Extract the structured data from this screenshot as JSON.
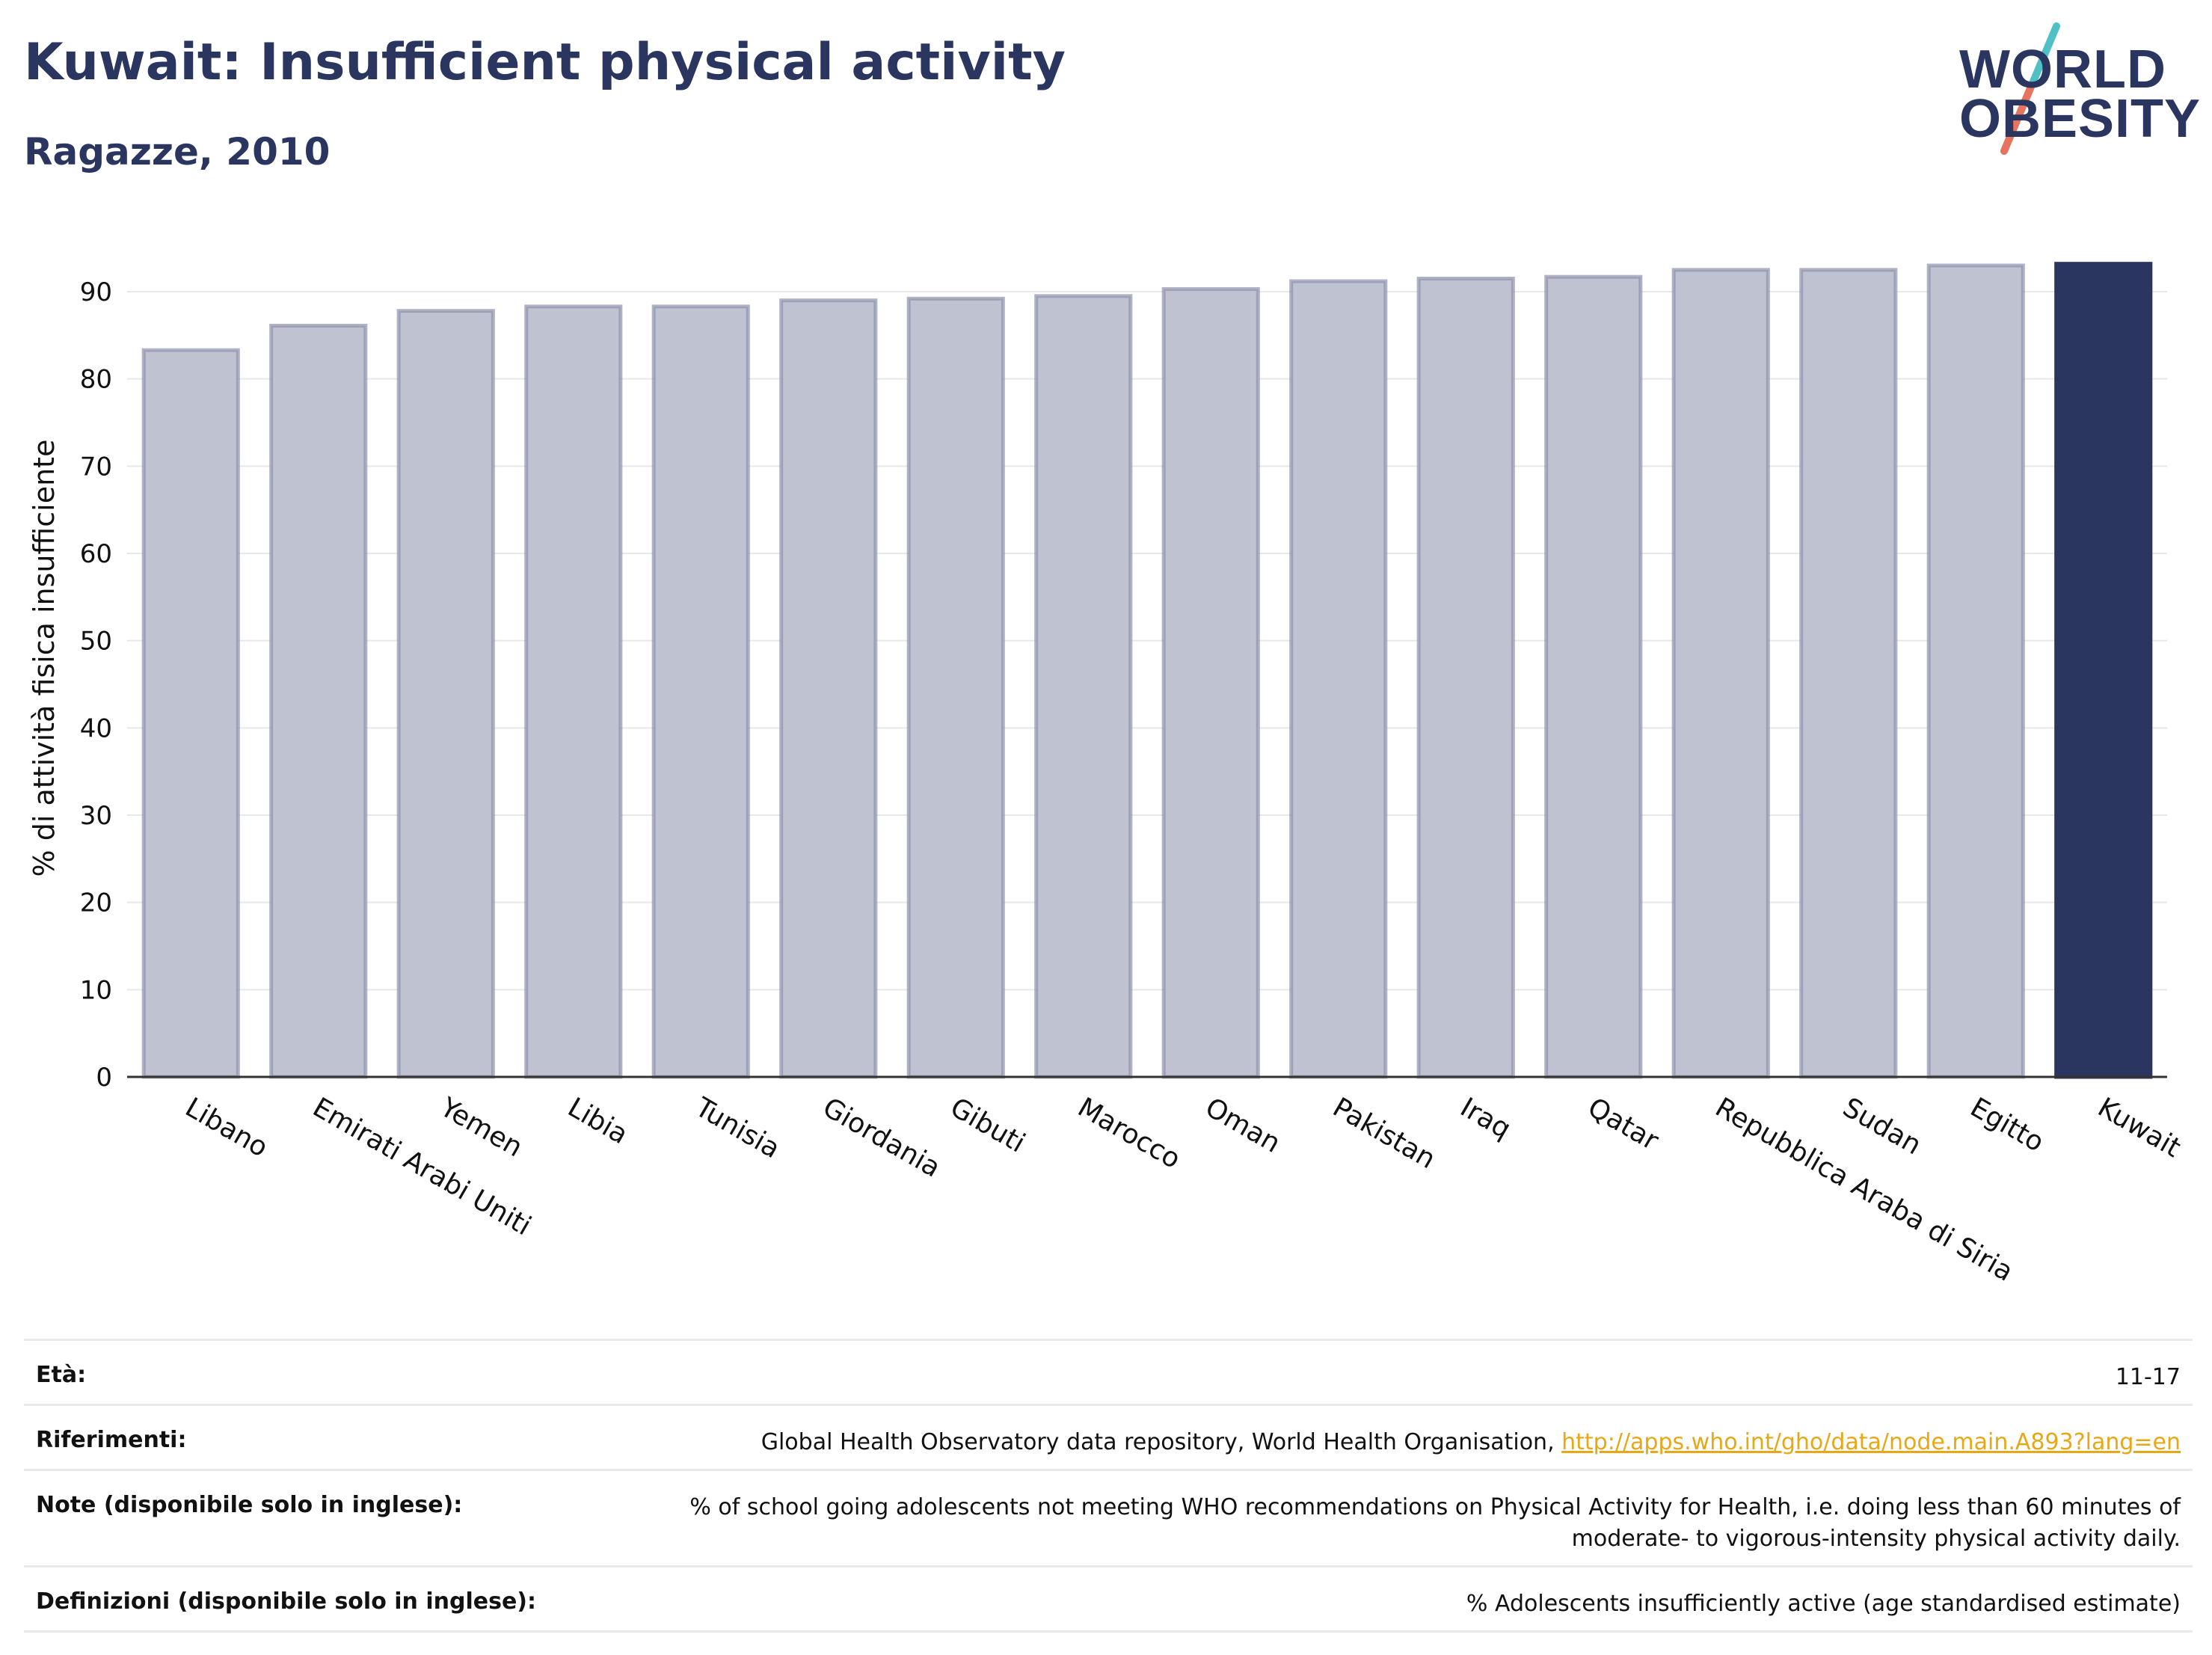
{
  "header": {
    "title": "Kuwait: Insufficient physical activity",
    "subtitle": "Ragazze, 2010"
  },
  "logo": {
    "line1": "WORLD",
    "line2": "OBESITY"
  },
  "chart_data": {
    "type": "bar",
    "categories": [
      "Libano",
      "Emirati Arabi Uniti",
      "Yemen",
      "Libia",
      "Tunisia",
      "Giordania",
      "Gibuti",
      "Marocco",
      "Oman",
      "Pakistan",
      "Iraq",
      "Qatar",
      "Repubblica Araba di Siria",
      "Sudan",
      "Egitto",
      "Kuwait"
    ],
    "values": [
      83.3,
      86.1,
      87.8,
      88.3,
      88.3,
      89.0,
      89.2,
      89.5,
      90.3,
      91.2,
      91.5,
      91.7,
      92.5,
      92.5,
      93.0,
      93.2
    ],
    "highlight": "Kuwait",
    "ylabel": "% di attività fisica insufficiente",
    "yticks": [
      0,
      10,
      20,
      30,
      40,
      50,
      60,
      70,
      80,
      90
    ],
    "ylim": [
      0,
      96
    ],
    "grid": true,
    "colors": {
      "bar": "#bfc2d0",
      "bar_border": "#8e93ad",
      "highlight": "#2a3560"
    }
  },
  "meta": {
    "rows": [
      {
        "label": "Età:",
        "value": "11-17"
      },
      {
        "label": "Riferimenti:",
        "value": "Global Health Observatory data repository, World Health Organisation, ",
        "link": "http://apps.who.int/gho/data/node.main.A893?lang=en"
      },
      {
        "label": "Note (disponibile solo in inglese):",
        "value": "% of school going adolescents not meeting WHO recommendations on Physical Activity for Health, i.e. doing less than 60 minutes of moderate- to vigorous-intensity physical activity daily."
      },
      {
        "label": "Definizioni (disponibile solo in inglese):",
        "value": "% Adolescents insufficiently active (age standardised estimate)"
      }
    ]
  }
}
